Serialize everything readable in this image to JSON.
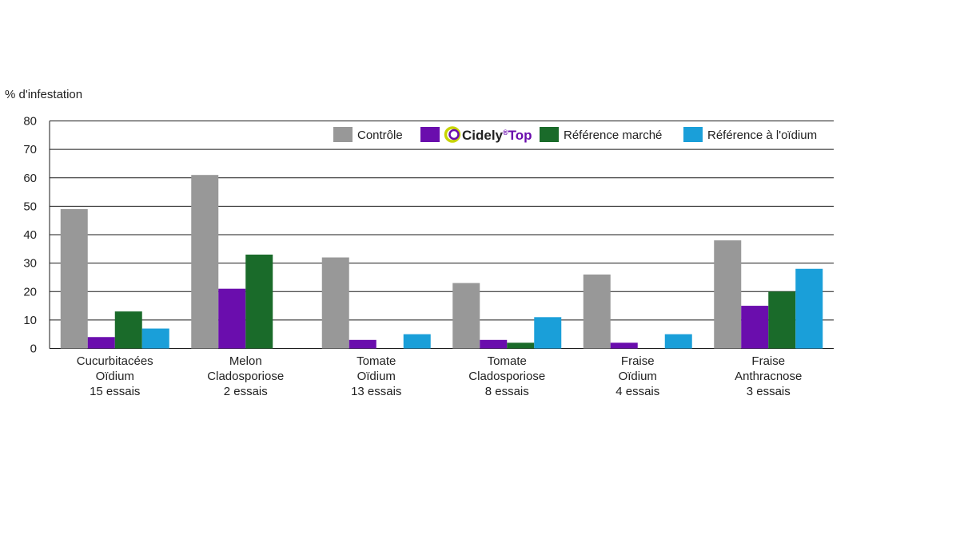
{
  "chart_data": {
    "type": "bar",
    "ylabel": "% d'infestation",
    "ylim": [
      0,
      80
    ],
    "yticks": [
      0,
      10,
      20,
      30,
      40,
      50,
      60,
      70,
      80
    ],
    "grid": true,
    "legend_position": "top-right",
    "categories": [
      [
        "Cucurbitacées",
        "Oïdium",
        "15 essais"
      ],
      [
        "Melon",
        "Cladosporiose",
        "2 essais"
      ],
      [
        "Tomate",
        "Oïdium",
        "13 essais"
      ],
      [
        "Tomate",
        "Cladosporiose",
        "8 essais"
      ],
      [
        "Fraise",
        "Oïdium",
        "4 essais"
      ],
      [
        "Fraise",
        "Anthracnose",
        "3 essais"
      ]
    ],
    "series": [
      {
        "name": "Contrôle",
        "color": "#989898",
        "values": [
          49,
          61,
          32,
          23,
          26,
          38
        ]
      },
      {
        "name": "Cidely Top",
        "brand_logo": true,
        "color": "#6a0dad",
        "values": [
          4,
          21,
          3,
          3,
          2,
          15
        ]
      },
      {
        "name": "Référence marché",
        "color": "#1a6b2a",
        "values": [
          13,
          33,
          null,
          2,
          null,
          20
        ]
      },
      {
        "name": "Référence à l'oïdium",
        "color": "#1a9fd9",
        "values": [
          7,
          null,
          5,
          11,
          5,
          28
        ]
      }
    ],
    "brand": {
      "word": "Cidely",
      "mark": "®",
      "suffix": "Top",
      "word_color": "#6a0dad",
      "ring_colors": [
        "#6a0dad",
        "#c8d400"
      ]
    }
  }
}
